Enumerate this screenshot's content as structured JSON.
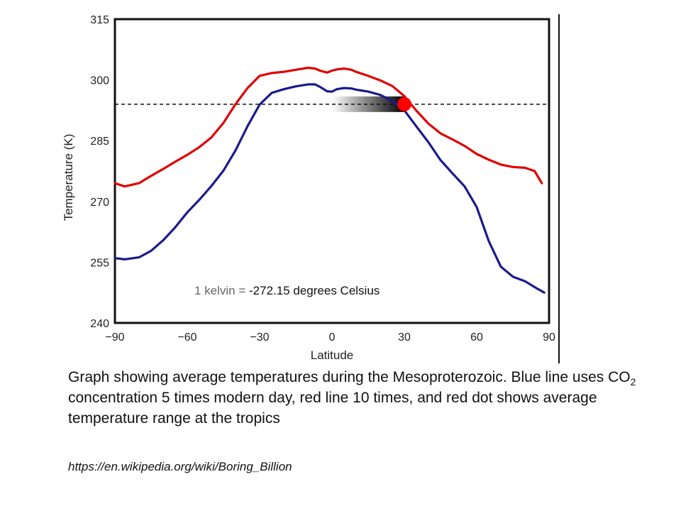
{
  "chart_data": {
    "type": "line",
    "xlabel": "Latitude",
    "ylabel": "Temperature (K)",
    "xlim": [
      -90,
      90
    ],
    "ylim": [
      240,
      315
    ],
    "x_ticks": [
      -90,
      -60,
      -30,
      0,
      30,
      60,
      90
    ],
    "x_tick_labels": [
      "−90",
      "−60",
      "−30",
      "0",
      "30",
      "60",
      "90"
    ],
    "y_ticks": [
      240,
      255,
      270,
      285,
      300,
      315
    ],
    "y_tick_labels": [
      "240",
      "255",
      "270",
      "285",
      "300",
      "315"
    ],
    "grid": false,
    "series": [
      {
        "color": "#e00000",
        "x": [
          -90,
          -86,
          -80,
          -75,
          -70,
          -65,
          -60,
          -55,
          -50,
          -45,
          -40,
          -35,
          -30,
          -25,
          -20,
          -15,
          -10,
          -7,
          -5,
          -2,
          0,
          2,
          5,
          8,
          10,
          15,
          20,
          25,
          30,
          35,
          40,
          45,
          50,
          55,
          60,
          65,
          70,
          75,
          80,
          84,
          87
        ],
        "values": [
          274.5,
          273.7,
          274.5,
          276.3,
          278.0,
          279.8,
          281.5,
          283.4,
          285.8,
          289.4,
          294.0,
          298.0,
          301.0,
          301.7,
          302.0,
          302.5,
          303.0,
          302.8,
          302.3,
          301.8,
          302.3,
          302.6,
          302.8,
          302.5,
          302.0,
          301.0,
          299.9,
          298.5,
          296.0,
          292.4,
          289.2,
          286.8,
          285.3,
          283.7,
          281.7,
          280.3,
          279.1,
          278.5,
          278.3,
          277.5,
          274.5
        ]
      },
      {
        "color": "#1a1a8c",
        "x": [
          -90,
          -86,
          -80,
          -75,
          -70,
          -65,
          -60,
          -55,
          -50,
          -45,
          -40,
          -35,
          -30,
          -25,
          -20,
          -15,
          -10,
          -7,
          -5,
          -2,
          0,
          2,
          5,
          8,
          10,
          15,
          20,
          25,
          30,
          35,
          40,
          45,
          50,
          55,
          60,
          65,
          70,
          75,
          80,
          85,
          88
        ],
        "values": [
          256.0,
          255.7,
          256.2,
          257.8,
          260.4,
          263.6,
          267.3,
          270.4,
          273.8,
          277.6,
          282.6,
          288.6,
          293.9,
          296.8,
          297.7,
          298.4,
          298.9,
          298.9,
          298.3,
          297.2,
          297.1,
          297.7,
          298.0,
          297.9,
          297.6,
          297.1,
          296.3,
          294.8,
          292.5,
          288.5,
          284.6,
          280.2,
          276.9,
          273.7,
          268.6,
          260.2,
          253.9,
          251.4,
          250.3,
          248.5,
          247.5
        ]
      }
    ],
    "reference_line": {
      "y": 294.0,
      "style": "dashed",
      "color": "#111111"
    },
    "marker": {
      "x": 30,
      "y": 294.0,
      "color": "#ff0000"
    },
    "gradient_band": {
      "x_from": 0,
      "x_to": 30,
      "y": 294.0
    },
    "annotation": {
      "prefix": "1 kelvin = ",
      "value": "-272.15 degrees Celsius"
    }
  },
  "caption": {
    "part1": "Graph showing average temperatures during the Mesoproterozoic. Blue line uses CO",
    "sub": "2",
    "part2": " concentration 5 times modern day, red line 10 times, and red dot shows average temperature range at the tropics"
  },
  "source_url": "https://en.wikipedia.org/wiki/Boring_Billion"
}
